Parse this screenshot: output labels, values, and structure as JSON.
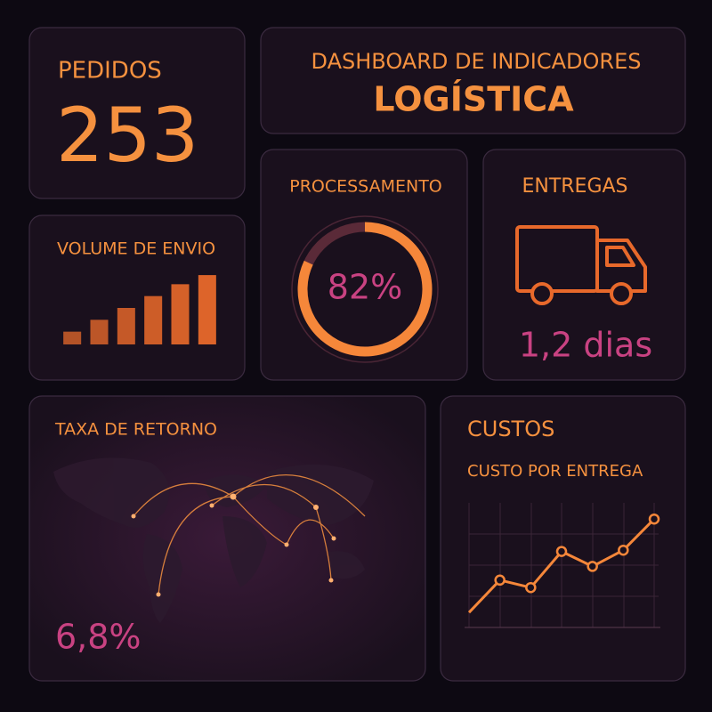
{
  "pedidos": {
    "title": "PEDIDOS",
    "value": 253
  },
  "header": {
    "subtitle": "DASHBOARD DE INDICADORES",
    "title": "LOGÍSTICA"
  },
  "volume": {
    "type": "bar",
    "title": "VOLUME DE ENVIO",
    "values": [
      14,
      27,
      40,
      53,
      66,
      76
    ],
    "ylim": [
      0,
      80
    ],
    "color": "#e8692b"
  },
  "processamento": {
    "type": "donut",
    "title": "PROCESSAMENTO",
    "value": 82,
    "value_label": "82%",
    "ylim": [
      0,
      100
    ],
    "color": "#f5873a"
  },
  "entregas": {
    "title": "ENTREGAS",
    "value": "1,2 dias"
  },
  "retorno": {
    "title": "TAXA DE RETORNO",
    "value": "6,8%"
  },
  "custos": {
    "type": "line",
    "title": "CUSTOS",
    "subtitle": "CUSTO POR ENTREGA",
    "values": [
      12,
      38,
      32,
      61,
      49,
      62,
      87
    ],
    "ylim": [
      0,
      100
    ],
    "color": "#f5873a"
  }
}
